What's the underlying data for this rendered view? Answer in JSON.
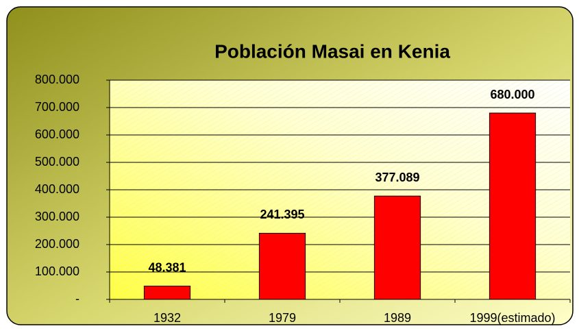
{
  "chart_data": {
    "type": "bar",
    "title": "Población Masai en Kenia",
    "categories": [
      "1932",
      "1979",
      "1989",
      "1999(estimado)"
    ],
    "values": [
      48381,
      241395,
      377089,
      680000
    ],
    "value_labels": [
      "48.381",
      "241.395",
      "377.089",
      "680.000"
    ],
    "color": "#ff0000",
    "ylim": [
      0,
      800000
    ],
    "yticks": [
      {
        "value": 0,
        "label": "-"
      },
      {
        "value": 100000,
        "label": "100.000"
      },
      {
        "value": 200000,
        "label": "200.000"
      },
      {
        "value": 300000,
        "label": "300.000"
      },
      {
        "value": 400000,
        "label": "400.000"
      },
      {
        "value": 500000,
        "label": "500.000"
      },
      {
        "value": 600000,
        "label": "600.000"
      },
      {
        "value": 700000,
        "label": "700.000"
      },
      {
        "value": 800000,
        "label": "800.000"
      }
    ],
    "grid": true
  }
}
